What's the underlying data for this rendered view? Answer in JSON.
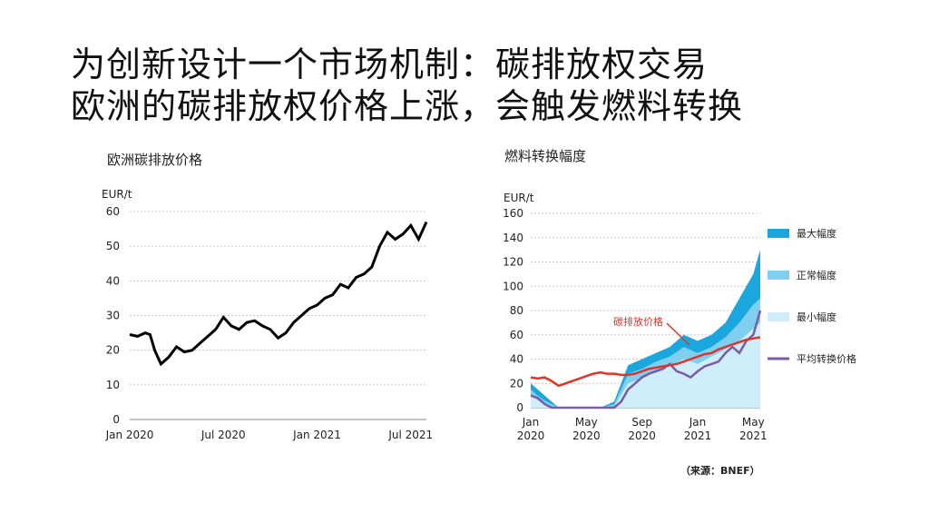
{
  "slide": {
    "title_line1": "为创新设计一个市场机制：碳排放权交易",
    "title_line2": "欧洲的碳排放权价格上涨，会触发燃料转换",
    "source": "（来源：BNEF）"
  },
  "colors": {
    "price_line": "#000000",
    "carbon_red": "#e0342a",
    "max_band": "#19a7de",
    "normal_band": "#7fd0ef",
    "min_band": "#cfeefb",
    "avg_purple": "#7b5aa6"
  },
  "chart_data": [
    {
      "type": "line",
      "title": "欧洲碳排放价格",
      "ylabel": "EUR/t",
      "ylim": [
        0,
        60
      ],
      "yticks": [
        0,
        10,
        20,
        30,
        40,
        50,
        60
      ],
      "xticks": [
        "Jan 2020",
        "Jul 2020",
        "Jan 2021",
        "Jul 2021"
      ],
      "grid": true,
      "series": [
        {
          "x": [
            0,
            0.5,
            1,
            1.3,
            1.6,
            2,
            2.5,
            3,
            3.5,
            4,
            4.5,
            5,
            5.5,
            6,
            6.5,
            7,
            7.5,
            8,
            8.5,
            9,
            9.5,
            10,
            10.5,
            11,
            11.5,
            12,
            12.5,
            13,
            13.5,
            14,
            14.5,
            15,
            15.5,
            16,
            16.5,
            17,
            17.5,
            18,
            18.5,
            19
          ],
          "values": [
            24.5,
            24,
            25,
            24.5,
            20,
            16,
            18,
            21,
            19.5,
            20,
            22,
            24,
            26,
            29.5,
            27,
            26,
            28,
            28.5,
            27,
            26,
            23.5,
            25,
            28,
            30,
            32,
            33,
            35,
            36,
            39,
            38,
            41,
            42,
            44,
            50,
            54,
            52,
            53.5,
            56,
            52,
            57
          ]
        }
      ]
    },
    {
      "type": "area",
      "title": "燃料转换幅度",
      "ylabel": "EUR/t",
      "ylim": [
        0,
        160
      ],
      "yticks": [
        0,
        20,
        40,
        60,
        80,
        100,
        120,
        140,
        160
      ],
      "xticks": [
        "Jan\n2020",
        "May\n2020",
        "Sep\n2020",
        "Jan\n2021",
        "May\n2021"
      ],
      "grid": true,
      "legend": "right",
      "annotation": "碳排放价格",
      "series": [
        {
          "name": "最大幅度",
          "type": "band_max",
          "x": [
            0,
            0.5,
            1,
            1.5,
            2,
            3,
            4,
            5,
            6,
            7,
            8,
            9,
            10,
            11,
            12,
            13,
            14,
            15,
            16,
            16.5
          ],
          "values": [
            20,
            15,
            10,
            5,
            0,
            0,
            0,
            0,
            5,
            35,
            40,
            45,
            50,
            60,
            55,
            60,
            70,
            90,
            110,
            130
          ]
        },
        {
          "name": "正常幅度",
          "type": "band_normal",
          "x": [
            0,
            0.5,
            1,
            1.5,
            2,
            3,
            4,
            5,
            6,
            7,
            8,
            9,
            10,
            11,
            12,
            13,
            14,
            15,
            16,
            16.5
          ],
          "values": [
            15,
            10,
            6,
            3,
            0,
            0,
            0,
            0,
            3,
            28,
            32,
            38,
            42,
            50,
            45,
            50,
            58,
            70,
            85,
            90
          ]
        },
        {
          "name": "最小幅度",
          "type": "band_min",
          "x": [
            0,
            0.5,
            1,
            1.5,
            2,
            3,
            4,
            5,
            6,
            7,
            8,
            9,
            10,
            11,
            12,
            13,
            14,
            15,
            16,
            16.5
          ],
          "values": [
            10,
            6,
            3,
            1,
            0,
            0,
            0,
            0,
            1,
            20,
            24,
            30,
            34,
            40,
            36,
            42,
            48,
            55,
            65,
            70
          ]
        },
        {
          "name": "平均转换价格",
          "type": "line",
          "x": [
            0,
            0.5,
            1,
            1.5,
            2,
            2.5,
            3,
            4,
            5,
            6,
            6.5,
            7,
            7.5,
            8,
            8.5,
            9,
            9.5,
            10,
            10.5,
            11,
            11.5,
            12,
            12.5,
            13,
            13.5,
            14,
            14.5,
            15,
            15.5,
            16,
            16.5
          ],
          "values": [
            10,
            8,
            3,
            0,
            0,
            0,
            0,
            0,
            0,
            0,
            5,
            15,
            20,
            25,
            28,
            30,
            32,
            36,
            30,
            28,
            25,
            30,
            34,
            36,
            38,
            45,
            50,
            45,
            55,
            60,
            80
          ]
        },
        {
          "name": "碳排放价格",
          "type": "line",
          "x": [
            0,
            0.5,
            1,
            1.5,
            2,
            2.5,
            3,
            3.5,
            4,
            4.5,
            5,
            5.5,
            6,
            6.5,
            7,
            7.5,
            8,
            8.5,
            9,
            9.5,
            10,
            10.5,
            11,
            11.5,
            12,
            12.5,
            13,
            13.5,
            14,
            14.5,
            15,
            15.5,
            16,
            16.5
          ],
          "values": [
            25,
            24,
            25,
            22,
            18,
            20,
            22,
            24,
            26,
            28,
            29,
            28,
            28,
            27,
            27,
            28,
            30,
            32,
            33,
            34,
            35,
            36,
            38,
            40,
            42,
            44,
            45,
            48,
            50,
            52,
            54,
            56,
            57,
            58
          ]
        }
      ]
    }
  ]
}
